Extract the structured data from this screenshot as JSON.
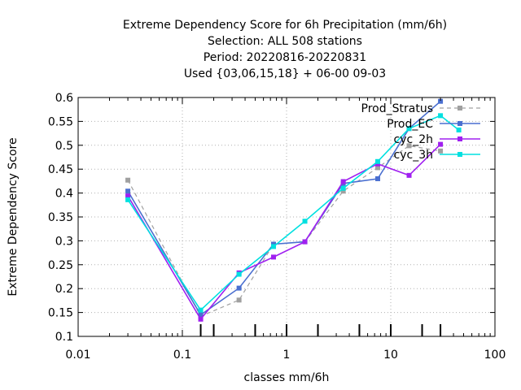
{
  "chart_data": {
    "type": "line",
    "title_lines": [
      "Extreme Dependency Score  for 6h Precipitation (mm/6h)",
      "Selection: ALL    508 stations",
      "Period: 20220816-20220831",
      "Used {03,06,15,18} + 06-00 09-03"
    ],
    "xlabel": "classes mm/6h",
    "ylabel": "Extreme Dependency Score",
    "x_scale": "log",
    "xlim": [
      0.01,
      100
    ],
    "ylim": [
      0.1,
      0.6
    ],
    "x_ticks": [
      0.01,
      0.1,
      1,
      10,
      100
    ],
    "x_tick_labels": [
      "0.01",
      "0.1",
      "1",
      "10",
      "100"
    ],
    "y_ticks": [
      0.1,
      0.15,
      0.2,
      0.25,
      0.3,
      0.35,
      0.4,
      0.45,
      0.5,
      0.55,
      0.6
    ],
    "y_tick_labels": [
      "0.1",
      "0.15",
      "0.2",
      "0.25",
      "0.3",
      "0.35",
      "0.4",
      "0.45",
      "0.5",
      "0.55",
      "0.6"
    ],
    "class_markers": [
      0.15,
      0.2,
      0.5,
      1,
      2,
      5,
      10,
      20,
      30
    ],
    "grid": true,
    "legend_position": "top-right",
    "series": [
      {
        "name": "Prod_Stratus",
        "color": "#a0a0a0",
        "dashed": true,
        "x": [
          0.03,
          0.15,
          0.35,
          0.75,
          1.5,
          3.5,
          7.5,
          15,
          30
        ],
        "y": [
          0.427,
          0.142,
          0.176,
          0.293,
          0.298,
          0.404,
          0.453,
          0.499,
          0.488
        ]
      },
      {
        "name": "Prod_EC",
        "color": "#4a6fd0",
        "dashed": false,
        "x": [
          0.03,
          0.15,
          0.35,
          0.75,
          1.5,
          3.5,
          7.5,
          15,
          30
        ],
        "y": [
          0.404,
          0.145,
          0.201,
          0.293,
          0.298,
          0.42,
          0.43,
          0.535,
          0.592
        ]
      },
      {
        "name": "cyc_2h",
        "color": "#a020f0",
        "dashed": false,
        "x": [
          0.03,
          0.15,
          0.35,
          0.75,
          1.5,
          3.5,
          7.5,
          15,
          30
        ],
        "y": [
          0.394,
          0.136,
          0.233,
          0.266,
          0.298,
          0.424,
          0.461,
          0.437,
          0.502
        ]
      },
      {
        "name": "cyc_3h",
        "color": "#00e0e0",
        "dashed": false,
        "x": [
          0.03,
          0.15,
          0.35,
          0.75,
          1.5,
          3.5,
          7.5,
          15,
          30,
          45
        ],
        "y": [
          0.386,
          0.155,
          0.23,
          0.288,
          0.341,
          0.41,
          0.466,
          0.535,
          0.562,
          0.532
        ]
      }
    ]
  }
}
